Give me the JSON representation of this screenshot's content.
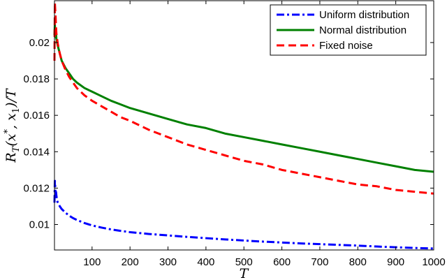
{
  "chart_data": {
    "type": "line",
    "xlabel": "T",
    "ylabel": "R_T(x*, x_1)/T",
    "xlim": [
      1,
      1000
    ],
    "ylim": [
      0.0086,
      0.0223
    ],
    "grid": false,
    "legend_position": "top-right",
    "x_ticks": [
      100,
      200,
      300,
      400,
      500,
      600,
      700,
      800,
      900,
      1000
    ],
    "x_tick_labels": [
      "100",
      "200",
      "300",
      "400",
      "500",
      "600",
      "700",
      "800",
      "900",
      "1000"
    ],
    "y_ticks": [
      0.01,
      0.012,
      0.014,
      0.016,
      0.018,
      0.02
    ],
    "y_tick_labels": [
      "0.01",
      "0.012",
      "0.014",
      "0.016",
      "0.018",
      "0.02"
    ],
    "series": [
      {
        "name": "Uniform distribution",
        "color": "#0000ff",
        "style": "dashdot",
        "x": [
          1,
          2,
          3,
          4,
          5,
          6,
          8,
          10,
          15,
          20,
          30,
          40,
          50,
          60,
          80,
          100,
          125,
          150,
          175,
          200,
          250,
          300,
          350,
          400,
          450,
          500,
          550,
          600,
          650,
          700,
          750,
          800,
          850,
          900,
          950,
          1000
        ],
        "y": [
          0.0112,
          0.0124,
          0.0121,
          0.0114,
          0.0118,
          0.0116,
          0.0113,
          0.0112,
          0.011,
          0.01085,
          0.01065,
          0.01048,
          0.01035,
          0.01025,
          0.01008,
          0.00995,
          0.00983,
          0.00973,
          0.00965,
          0.00958,
          0.00948,
          0.0094,
          0.00932,
          0.00925,
          0.00918,
          0.00912,
          0.00906,
          0.00901,
          0.00896,
          0.00892,
          0.00888,
          0.00884,
          0.00879,
          0.00875,
          0.00871,
          0.00868
        ]
      },
      {
        "name": "Normal distribution",
        "color": "#008000",
        "style": "solid",
        "x": [
          1,
          2,
          3,
          4,
          5,
          6,
          8,
          10,
          15,
          20,
          30,
          40,
          50,
          60,
          80,
          100,
          125,
          150,
          175,
          200,
          250,
          300,
          350,
          400,
          450,
          500,
          550,
          600,
          650,
          700,
          750,
          800,
          850,
          900,
          950,
          1000
        ],
        "y": [
          0.0204,
          0.021,
          0.0206,
          0.0203,
          0.0205,
          0.0202,
          0.02,
          0.0198,
          0.0194,
          0.019,
          0.0186,
          0.0183,
          0.018,
          0.0178,
          0.0175,
          0.0173,
          0.01705,
          0.0168,
          0.0166,
          0.0164,
          0.0161,
          0.0158,
          0.0155,
          0.0153,
          0.015,
          0.0148,
          0.0146,
          0.0144,
          0.0142,
          0.014,
          0.0138,
          0.0136,
          0.0134,
          0.0132,
          0.013,
          0.0129
        ]
      },
      {
        "name": "Fixed noise",
        "color": "#ff0000",
        "style": "dashed",
        "x": [
          1,
          2,
          3,
          4,
          5,
          6,
          8,
          10,
          15,
          20,
          30,
          40,
          50,
          60,
          80,
          100,
          125,
          150,
          175,
          200,
          250,
          300,
          350,
          400,
          450,
          500,
          550,
          600,
          650,
          700,
          750,
          800,
          850,
          900,
          950,
          1000
        ],
        "y": [
          0.019,
          0.0222,
          0.0218,
          0.0214,
          0.0209,
          0.0205,
          0.0202,
          0.0199,
          0.0194,
          0.019,
          0.0185,
          0.0181,
          0.0178,
          0.0175,
          0.0171,
          0.0168,
          0.0165,
          0.0162,
          0.0159,
          0.0157,
          0.0152,
          0.0148,
          0.0144,
          0.0141,
          0.0138,
          0.0135,
          0.0133,
          0.013,
          0.0128,
          0.0126,
          0.0124,
          0.0122,
          0.0121,
          0.0119,
          0.0118,
          0.0117
        ]
      }
    ]
  }
}
